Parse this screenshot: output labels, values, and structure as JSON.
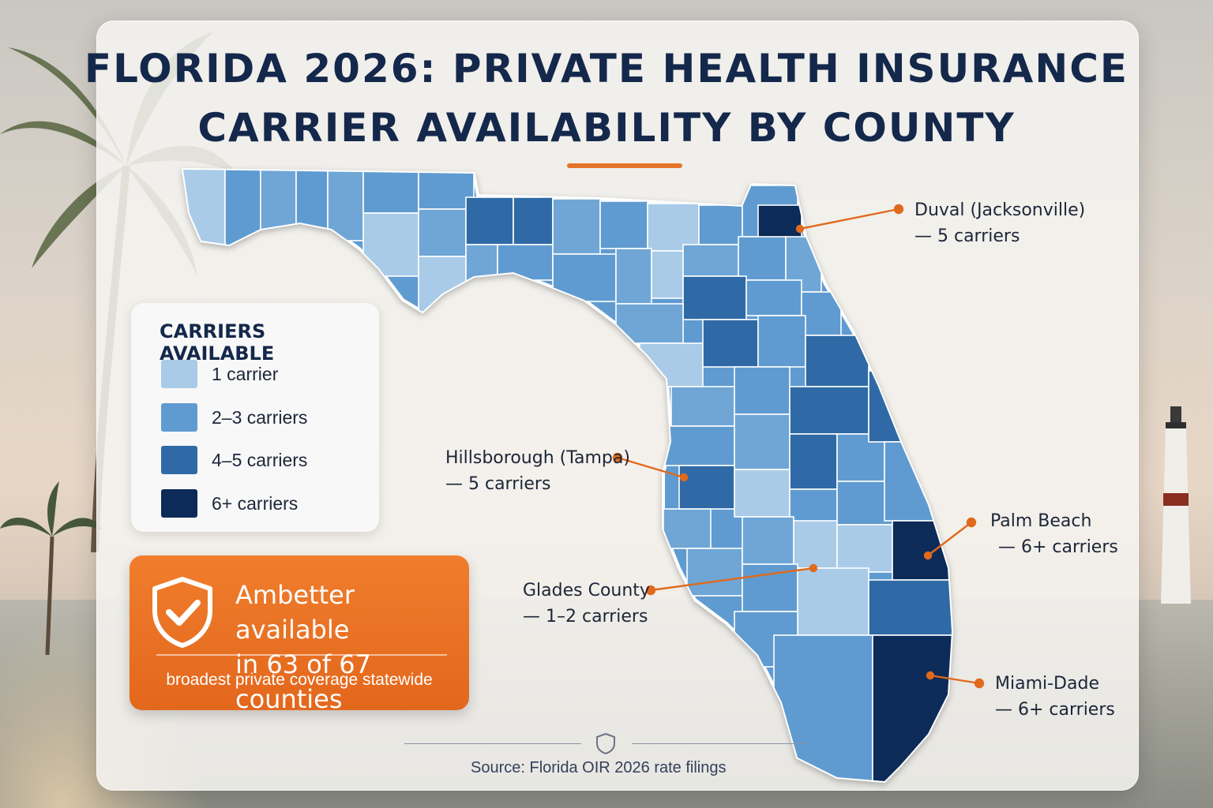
{
  "title": {
    "line1": "FLORIDA 2026: PRIVATE HEALTH INSURANCE",
    "line2": "CARRIER AVAILABILITY BY COUNTY"
  },
  "legend": {
    "title": "CARRIERS AVAILABLE",
    "items": [
      {
        "label": "1 carrier",
        "color": "#a9cbe8"
      },
      {
        "label": "2–3 carriers",
        "color": "#5f9bd0"
      },
      {
        "label": "4–5 carriers",
        "color": "#2f6aa6"
      },
      {
        "label": "6+ carriers",
        "color": "#0d2b58"
      }
    ]
  },
  "callout": {
    "line1": "Ambetter available",
    "line2": "in 63 of 67 counties",
    "subtitle": "broadest private coverage statewide",
    "accent": "#e86f22",
    "icon": "shield-check-icon"
  },
  "annotations": [
    {
      "county": "Duval (Jacksonville)",
      "detail": "— 5 carriers"
    },
    {
      "county": "Hillsborough (Tampa)",
      "detail": "— 5 carriers"
    },
    {
      "county": "Palm Beach",
      "detail": "— 6+ carriers"
    },
    {
      "county": "Glades County",
      "detail": "— 1–2 carriers"
    },
    {
      "county": "Miami-Dade",
      "detail": "— 6+ carriers"
    }
  ],
  "source": "Source: Florida OIR 2026 rate filings",
  "colors": {
    "title": "#14284b",
    "leader": "#e06a1c"
  }
}
